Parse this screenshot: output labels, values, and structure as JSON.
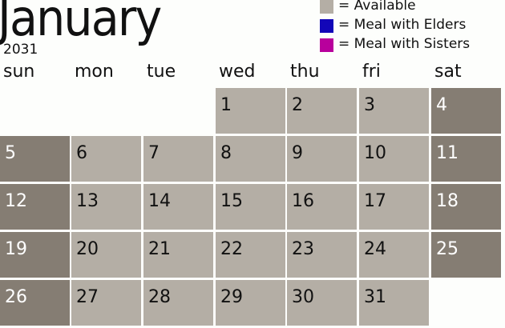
{
  "header": {
    "month": "January",
    "year": "2031"
  },
  "legend": [
    {
      "label": "= Available",
      "color": "#b4aea5"
    },
    {
      "label": "= Meal with Elders",
      "color": "#1206b8"
    },
    {
      "label": "= Meal with Sisters",
      "color": "#b8009c"
    }
  ],
  "colors": {
    "available": "#b4aea5",
    "weekend": "#857d73"
  },
  "weekdays": [
    "sun",
    "mon",
    "tue",
    "wed",
    "thu",
    "fri",
    "sat"
  ],
  "weeks": [
    [
      null,
      null,
      null,
      "1",
      "2",
      "3",
      "4"
    ],
    [
      "5",
      "6",
      "7",
      "8",
      "9",
      "10",
      "11"
    ],
    [
      "12",
      "13",
      "14",
      "15",
      "16",
      "17",
      "18"
    ],
    [
      "19",
      "20",
      "21",
      "22",
      "23",
      "24",
      "25"
    ],
    [
      "26",
      "27",
      "28",
      "29",
      "30",
      "31",
      null
    ]
  ]
}
